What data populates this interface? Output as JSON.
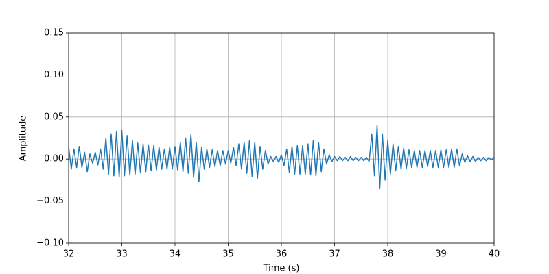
{
  "chart_data": {
    "type": "line",
    "xlabel": "Time (s)",
    "ylabel": "Amplitude",
    "xlim": [
      32,
      40
    ],
    "xticks": [
      32,
      33,
      34,
      35,
      36,
      37,
      38,
      39,
      40
    ],
    "ylim": [
      -0.1,
      0.15
    ],
    "yticks": [
      {
        "value": -0.1,
        "label": "−0.10"
      },
      {
        "value": -0.05,
        "label": "−0.05"
      },
      {
        "value": 0,
        "label": "0.00"
      },
      {
        "value": 0.05,
        "label": "0.05"
      },
      {
        "value": 0.1,
        "label": "0.10"
      },
      {
        "value": 0.15,
        "label": "0.15"
      }
    ],
    "grid": true,
    "color": "#1f77b4",
    "x": [
      32,
      32.05,
      32.1,
      32.15,
      32.2,
      32.25,
      32.3,
      32.35,
      32.4,
      32.45,
      32.5,
      32.55,
      32.6,
      32.65,
      32.7,
      32.75,
      32.8,
      32.85,
      32.9,
      32.95,
      33,
      33.05,
      33.1,
      33.15,
      33.2,
      33.25,
      33.3,
      33.35,
      33.4,
      33.45,
      33.5,
      33.55,
      33.6,
      33.65,
      33.7,
      33.75,
      33.8,
      33.85,
      33.9,
      33.95,
      34,
      34.05,
      34.1,
      34.15,
      34.2,
      34.25,
      34.3,
      34.35,
      34.4,
      34.45,
      34.5,
      34.55,
      34.6,
      34.65,
      34.7,
      34.75,
      34.8,
      34.85,
      34.9,
      34.95,
      35,
      35.05,
      35.1,
      35.15,
      35.2,
      35.25,
      35.3,
      35.35,
      35.4,
      35.45,
      35.5,
      35.55,
      35.6,
      35.65,
      35.7,
      35.75,
      35.8,
      35.85,
      35.9,
      35.95,
      36,
      36.05,
      36.1,
      36.15,
      36.2,
      36.25,
      36.3,
      36.35,
      36.4,
      36.45,
      36.5,
      36.55,
      36.6,
      36.65,
      36.7,
      36.75,
      36.8,
      36.85,
      36.9,
      36.95,
      37,
      37.05,
      37.1,
      37.15,
      37.2,
      37.25,
      37.3,
      37.35,
      37.4,
      37.45,
      37.5,
      37.55,
      37.6,
      37.65,
      37.7,
      37.75,
      37.8,
      37.85,
      37.9,
      37.95,
      38,
      38.05,
      38.1,
      38.15,
      38.2,
      38.25,
      38.3,
      38.35,
      38.4,
      38.45,
      38.5,
      38.55,
      38.6,
      38.65,
      38.7,
      38.75,
      38.8,
      38.85,
      38.9,
      38.95,
      39,
      39.05,
      39.1,
      39.15,
      39.2,
      39.25,
      39.3,
      39.35,
      39.4,
      39.45,
      39.5,
      39.55,
      39.6,
      39.65,
      39.7,
      39.75,
      39.8,
      39.85,
      39.9,
      39.95,
      40
    ],
    "values": [
      0.015,
      -0.012,
      0.012,
      -0.01,
      0.015,
      -0.01,
      0.008,
      -0.015,
      0.006,
      -0.005,
      0.008,
      -0.007,
      0.012,
      -0.012,
      0.025,
      -0.018,
      0.03,
      -0.02,
      0.033,
      -0.021,
      0.034,
      -0.02,
      0.028,
      -0.019,
      0.022,
      -0.018,
      0.019,
      -0.016,
      0.018,
      -0.015,
      0.017,
      -0.014,
      0.016,
      -0.013,
      0.014,
      -0.012,
      0.012,
      -0.012,
      0.014,
      -0.012,
      0.015,
      -0.013,
      0.02,
      -0.015,
      0.025,
      -0.017,
      0.029,
      -0.022,
      0.02,
      -0.027,
      0.014,
      -0.012,
      0.012,
      -0.01,
      0.011,
      -0.009,
      0.01,
      -0.008,
      0.01,
      -0.006,
      0.01,
      -0.005,
      0.014,
      -0.008,
      0.018,
      -0.012,
      0.02,
      -0.017,
      0.022,
      -0.021,
      0.02,
      -0.023,
      0.015,
      -0.012,
      0.01,
      -0.006,
      0.003,
      -0.003,
      0.003,
      -0.004,
      0.005,
      -0.008,
      0.012,
      -0.016,
      0.015,
      -0.018,
      0.016,
      -0.018,
      0.016,
      -0.018,
      0.018,
      -0.019,
      0.022,
      -0.02,
      0.02,
      -0.015,
      0.012,
      -0.006,
      0.005,
      -0.003,
      0.003,
      -0.002,
      0.003,
      -0.002,
      0.002,
      -0.002,
      0.003,
      -0.002,
      0.002,
      -0.002,
      0.002,
      -0.002,
      0.002,
      -0.003,
      0.03,
      -0.02,
      0.04,
      -0.035,
      0.03,
      -0.025,
      0.022,
      -0.018,
      0.018,
      -0.014,
      0.015,
      -0.012,
      0.013,
      -0.011,
      0.011,
      -0.01,
      0.01,
      -0.01,
      0.01,
      -0.01,
      0.01,
      -0.009,
      0.01,
      -0.01,
      0.01,
      -0.01,
      0.011,
      -0.01,
      0.011,
      -0.01,
      0.012,
      -0.01,
      0.012,
      -0.008,
      0.006,
      -0.004,
      0.004,
      -0.003,
      0.003,
      -0.003,
      0.002,
      -0.002,
      0.002,
      -0.002,
      0.002,
      -0.001,
      0.002
    ]
  }
}
